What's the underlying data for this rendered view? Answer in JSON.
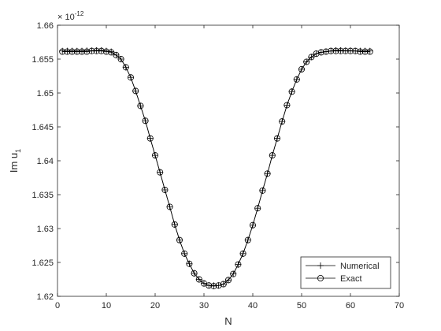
{
  "chart_data": {
    "type": "line",
    "title": "",
    "xlabel": "N",
    "ylabel_main": "Im u",
    "ylabel_sub": "1",
    "exponent_prefix": "× 10",
    "exponent_power": "-12",
    "xlim": [
      0,
      70
    ],
    "ylim": [
      1.62,
      1.66
    ],
    "x_ticks": [
      "0",
      "10",
      "20",
      "30",
      "40",
      "50",
      "60",
      "70"
    ],
    "y_ticks": [
      "1.62",
      "1.625",
      "1.63",
      "1.635",
      "1.64",
      "1.645",
      "1.65",
      "1.655",
      "1.66"
    ],
    "grid": false,
    "legend_position": "bottom-right",
    "x": [
      1,
      2,
      3,
      4,
      5,
      6,
      7,
      8,
      9,
      10,
      11,
      12,
      13,
      14,
      15,
      16,
      17,
      18,
      19,
      20,
      21,
      22,
      23,
      24,
      25,
      26,
      27,
      28,
      29,
      30,
      31,
      32,
      33,
      34,
      35,
      36,
      37,
      38,
      39,
      40,
      41,
      42,
      43,
      44,
      45,
      46,
      47,
      48,
      49,
      50,
      51,
      52,
      53,
      54,
      55,
      56,
      57,
      58,
      59,
      60,
      61,
      62,
      63,
      64
    ],
    "series": [
      {
        "name": "Numerical",
        "marker": "plus",
        "color": "#000000",
        "values": [
          1.6562,
          1.6562,
          1.6562,
          1.6562,
          1.6562,
          1.65625,
          1.65625,
          1.6563,
          1.6563,
          1.6562,
          1.6561,
          1.6556,
          1.655,
          1.6538,
          1.6523,
          1.6503,
          1.6481,
          1.6459,
          1.6433,
          1.6408,
          1.6383,
          1.6357,
          1.6332,
          1.6306,
          1.6283,
          1.6263,
          1.6248,
          1.6234,
          1.6225,
          1.6219,
          1.6216,
          1.6216,
          1.6216,
          1.6218,
          1.6224,
          1.6233,
          1.6247,
          1.6263,
          1.6283,
          1.6305,
          1.633,
          1.6356,
          1.6381,
          1.6408,
          1.6433,
          1.6458,
          1.6482,
          1.6502,
          1.652,
          1.6535,
          1.6546,
          1.6553,
          1.6558,
          1.656,
          1.6561,
          1.6562,
          1.6563,
          1.6563,
          1.65625,
          1.65625,
          1.6562,
          1.6562,
          1.6562,
          1.6562
        ]
      },
      {
        "name": "Exact",
        "marker": "circle",
        "color": "#000000",
        "values": [
          1.6561,
          1.6561,
          1.6561,
          1.6561,
          1.6561,
          1.6561,
          1.6562,
          1.6562,
          1.6562,
          1.6561,
          1.656,
          1.6556,
          1.655,
          1.6538,
          1.6523,
          1.6503,
          1.6481,
          1.6459,
          1.6433,
          1.6408,
          1.6383,
          1.6357,
          1.6332,
          1.6306,
          1.6283,
          1.6263,
          1.6248,
          1.6234,
          1.6225,
          1.6219,
          1.6216,
          1.6215,
          1.6216,
          1.6218,
          1.6224,
          1.6233,
          1.6247,
          1.6263,
          1.6283,
          1.6305,
          1.633,
          1.6356,
          1.6381,
          1.6408,
          1.6433,
          1.6458,
          1.6482,
          1.6502,
          1.652,
          1.6535,
          1.6546,
          1.6553,
          1.6558,
          1.656,
          1.6561,
          1.6562,
          1.6562,
          1.6562,
          1.6562,
          1.6562,
          1.6562,
          1.6561,
          1.6561,
          1.6561
        ]
      }
    ]
  }
}
